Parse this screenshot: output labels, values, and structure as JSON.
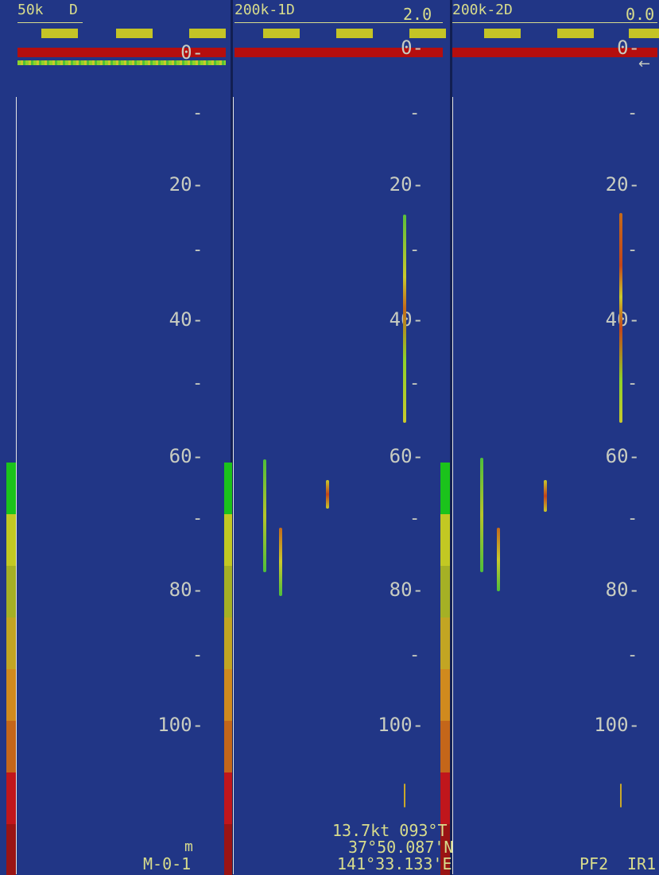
{
  "panes": [
    {
      "frequency": "50k   D",
      "value": ""
    },
    {
      "frequency": "200k-1D",
      "value": "2.0"
    },
    {
      "frequency": "200k-2D",
      "value": "0.0"
    }
  ],
  "depth_scale": {
    "zero": "0-",
    "minor": "-",
    "labels": [
      "20-",
      "40-",
      "60-",
      "80-",
      "100-"
    ]
  },
  "unit": "m",
  "mode": "M-0-1",
  "speed_heading": "13.7kt 093°T",
  "latitude": "37°50.087'N",
  "longitude": "141°33.133'E",
  "pf_label": "PF2",
  "ir_label": "IR1",
  "shift_marker": "←",
  "colors": {
    "background": "#213686",
    "text": "#d8dc8c",
    "scale_text": "#c8ccc0",
    "sea_surface": "#b40e0e",
    "color_scale": [
      "#1bc31b",
      "#c2c823",
      "#a5b025",
      "#c2a523",
      "#d08a1e",
      "#c4661a",
      "#c0161c",
      "#9a1414"
    ]
  }
}
